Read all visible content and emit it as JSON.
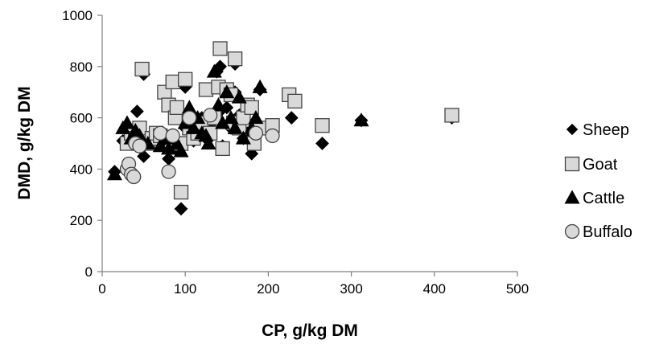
{
  "chart_data": {
    "type": "scatter",
    "title": "",
    "xlabel": "CP, g/kg DM",
    "ylabel": "DMD, g/kg DM",
    "xlim": [
      0,
      500
    ],
    "ylim": [
      0,
      1000
    ],
    "xticks": [
      0,
      100,
      200,
      300,
      400,
      500
    ],
    "yticks": [
      0,
      200,
      400,
      600,
      800,
      1000
    ],
    "grid": false,
    "legend_position": "right",
    "series": [
      {
        "name": "Sheep",
        "marker": "diamond",
        "color": "#000000",
        "points": [
          [
            15,
            390
          ],
          [
            25,
            510
          ],
          [
            30,
            560
          ],
          [
            35,
            520
          ],
          [
            40,
            540
          ],
          [
            42,
            625
          ],
          [
            45,
            560
          ],
          [
            50,
            450
          ],
          [
            50,
            770
          ],
          [
            60,
            510
          ],
          [
            65,
            540
          ],
          [
            70,
            500
          ],
          [
            75,
            530
          ],
          [
            80,
            440
          ],
          [
            85,
            520
          ],
          [
            90,
            480
          ],
          [
            95,
            245
          ],
          [
            100,
            560
          ],
          [
            100,
            720
          ],
          [
            105,
            600
          ],
          [
            110,
            510
          ],
          [
            115,
            540
          ],
          [
            120,
            600
          ],
          [
            125,
            520
          ],
          [
            130,
            560
          ],
          [
            135,
            590
          ],
          [
            138,
            780
          ],
          [
            140,
            620
          ],
          [
            142,
            800
          ],
          [
            145,
            490
          ],
          [
            150,
            640
          ],
          [
            155,
            560
          ],
          [
            160,
            700
          ],
          [
            160,
            810
          ],
          [
            165,
            610
          ],
          [
            170,
            520
          ],
          [
            175,
            540
          ],
          [
            180,
            460
          ],
          [
            185,
            580
          ],
          [
            190,
            710
          ],
          [
            228,
            600
          ],
          [
            265,
            500
          ],
          [
            312,
            590
          ],
          [
            421,
            600
          ]
        ]
      },
      {
        "name": "Goat",
        "marker": "square",
        "color": "#d9d9d9",
        "points": [
          [
            30,
            500
          ],
          [
            35,
            540
          ],
          [
            40,
            520
          ],
          [
            45,
            560
          ],
          [
            48,
            790
          ],
          [
            55,
            500
          ],
          [
            60,
            520
          ],
          [
            65,
            540
          ],
          [
            70,
            530
          ],
          [
            75,
            700
          ],
          [
            80,
            650
          ],
          [
            85,
            740
          ],
          [
            88,
            600
          ],
          [
            90,
            640
          ],
          [
            95,
            500
          ],
          [
            95,
            310
          ],
          [
            100,
            750
          ],
          [
            105,
            560
          ],
          [
            110,
            520
          ],
          [
            115,
            540
          ],
          [
            120,
            580
          ],
          [
            125,
            710
          ],
          [
            130,
            540
          ],
          [
            135,
            600
          ],
          [
            140,
            720
          ],
          [
            142,
            870
          ],
          [
            145,
            480
          ],
          [
            150,
            710
          ],
          [
            155,
            690
          ],
          [
            158,
            580
          ],
          [
            160,
            830
          ],
          [
            165,
            560
          ],
          [
            170,
            600
          ],
          [
            175,
            650
          ],
          [
            180,
            640
          ],
          [
            183,
            500
          ],
          [
            190,
            560
          ],
          [
            205,
            570
          ],
          [
            225,
            690
          ],
          [
            232,
            665
          ],
          [
            265,
            570
          ],
          [
            421,
            610
          ]
        ]
      },
      {
        "name": "Cattle",
        "marker": "triangle",
        "color": "#000000",
        "points": [
          [
            15,
            380
          ],
          [
            25,
            560
          ],
          [
            30,
            580
          ],
          [
            35,
            520
          ],
          [
            40,
            550
          ],
          [
            45,
            530
          ],
          [
            55,
            500
          ],
          [
            70,
            490
          ],
          [
            75,
            520
          ],
          [
            80,
            480
          ],
          [
            85,
            530
          ],
          [
            90,
            500
          ],
          [
            95,
            470
          ],
          [
            100,
            580
          ],
          [
            105,
            640
          ],
          [
            110,
            560
          ],
          [
            115,
            600
          ],
          [
            120,
            540
          ],
          [
            125,
            530
          ],
          [
            128,
            500
          ],
          [
            135,
            780
          ],
          [
            140,
            650
          ],
          [
            145,
            580
          ],
          [
            150,
            700
          ],
          [
            155,
            600
          ],
          [
            160,
            560
          ],
          [
            165,
            680
          ],
          [
            170,
            520
          ],
          [
            180,
            560
          ],
          [
            185,
            600
          ],
          [
            190,
            720
          ],
          [
            312,
            590
          ]
        ]
      },
      {
        "name": "Buffalo",
        "marker": "circle",
        "color": "#d9d9d9",
        "points": [
          [
            30,
            400
          ],
          [
            32,
            420
          ],
          [
            35,
            380
          ],
          [
            38,
            370
          ],
          [
            40,
            500
          ],
          [
            45,
            490
          ],
          [
            70,
            540
          ],
          [
            80,
            390
          ],
          [
            85,
            530
          ],
          [
            105,
            600
          ],
          [
            130,
            610
          ],
          [
            185,
            540
          ],
          [
            205,
            530
          ]
        ]
      }
    ]
  }
}
